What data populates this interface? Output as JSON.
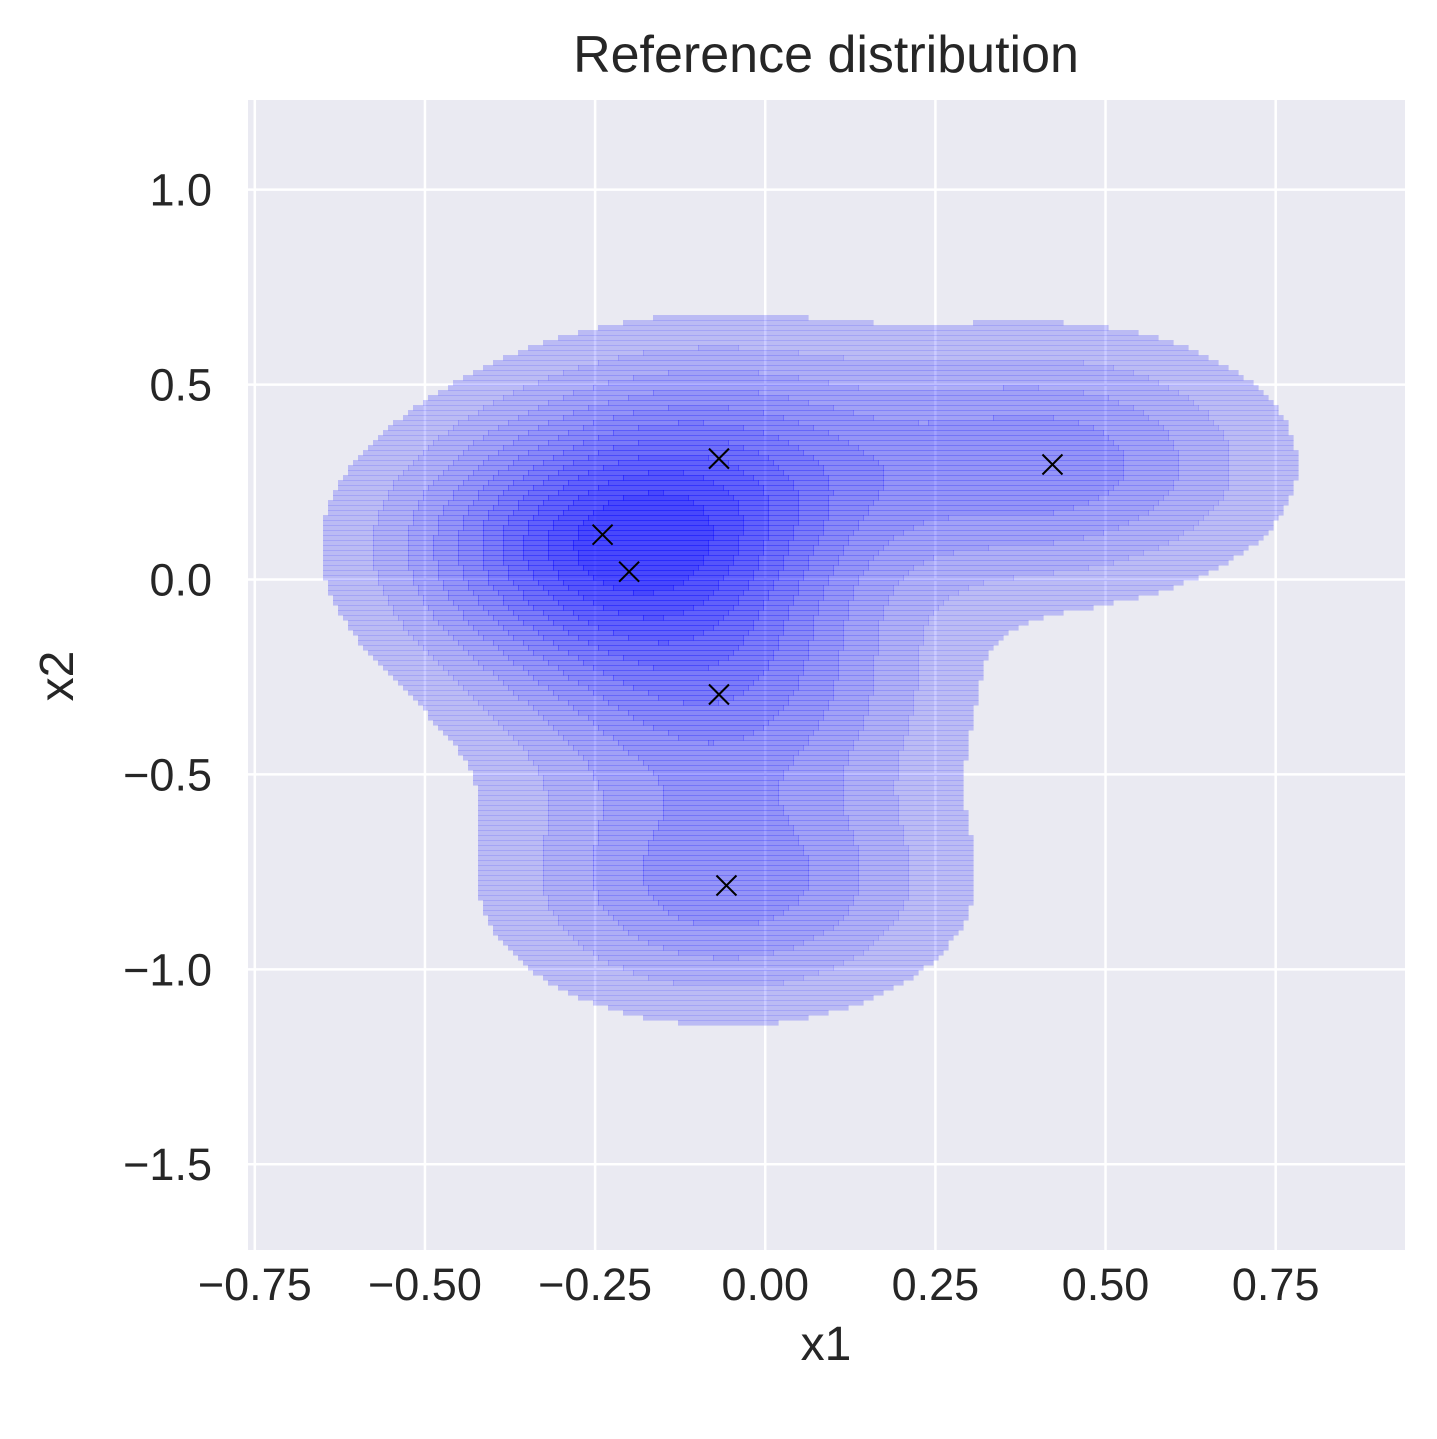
{
  "chart_data": {
    "type": "kde_contour",
    "title": "Reference distribution",
    "xlabel": "x1",
    "ylabel": "x2",
    "xlim": [
      -0.76,
      0.94
    ],
    "ylim": [
      -1.72,
      1.23
    ],
    "xticks": [
      -0.75,
      -0.5,
      -0.25,
      0.0,
      0.25,
      0.5,
      0.75
    ],
    "xtick_labels": [
      "−0.75",
      "−0.50",
      "−0.25",
      "0.00",
      "0.25",
      "0.50",
      "0.75"
    ],
    "yticks": [
      1.0,
      0.5,
      0.0,
      -0.5,
      -1.0,
      -1.5
    ],
    "ytick_labels": [
      "1.0",
      "0.5",
      "0.0",
      "−0.5",
      "−1.0",
      "−1.5"
    ],
    "grid": true,
    "fill_color": "#0000ff",
    "plot_background": "#eaeaf2",
    "grid_color": "#ffffff",
    "marker": "x",
    "marker_color": "#000000",
    "samples": [
      {
        "x1": -0.239,
        "x2": 0.115
      },
      {
        "x1": -0.2,
        "x2": 0.02
      },
      {
        "x1": -0.068,
        "x2": 0.31
      },
      {
        "x1": -0.068,
        "x2": -0.295
      },
      {
        "x1": -0.057,
        "x2": -0.785
      },
      {
        "x1": 0.422,
        "x2": 0.295
      }
    ]
  }
}
